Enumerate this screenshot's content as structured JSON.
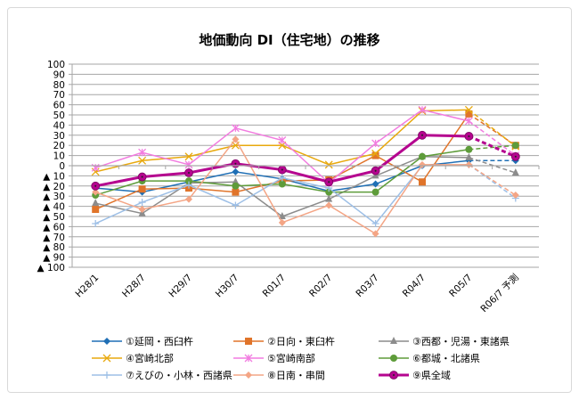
{
  "chart_data": {
    "type": "line",
    "title": "地価動向 DI（住宅地）の推移",
    "categories": [
      "H28/1",
      "H28/7",
      "H29/7",
      "H30/7",
      "R01/7",
      "R02/7",
      "R03/7",
      "R04/7",
      "R05/7",
      "R06/7 予測"
    ],
    "ylim": [
      -100,
      100
    ],
    "ytick_step": 10,
    "ytick_negative_prefix": "▲ ",
    "grid": true,
    "legend_placement": "bottom",
    "forecast_dashed_last_segment": true,
    "series": [
      {
        "name": "①延岡・西臼杵",
        "color": "#1f6fb5",
        "marker": "diamond",
        "width": 1.5,
        "values": [
          -22,
          -26,
          -16,
          -6,
          -13,
          -25,
          -18,
          0,
          5,
          5
        ]
      },
      {
        "name": "②日向・東臼杵",
        "color": "#e0742a",
        "marker": "square",
        "width": 1.5,
        "values": [
          -43,
          -23,
          -22,
          -26,
          -15,
          -14,
          10,
          -16,
          51,
          20
        ]
      },
      {
        "name": "③西都・児湯・東諸県",
        "color": "#8c8c8c",
        "marker": "triangle",
        "width": 1.5,
        "values": [
          -37,
          -47,
          -17,
          -16,
          -50,
          -33,
          -10,
          9,
          8,
          -7
        ]
      },
      {
        "name": "④宮崎北部",
        "color": "#e8a90e",
        "marker": "x",
        "width": 1.5,
        "values": [
          -6,
          5,
          9,
          20,
          20,
          1,
          12,
          54,
          55,
          19
        ]
      },
      {
        "name": "⑤宮崎南部",
        "color": "#f27ce0",
        "marker": "star",
        "width": 1.5,
        "values": [
          -2,
          13,
          1,
          37,
          25,
          -17,
          22,
          55,
          44,
          10
        ]
      },
      {
        "name": "⑥都城・北諸県",
        "color": "#5e9c3a",
        "marker": "circle",
        "width": 1.5,
        "values": [
          -29,
          -15,
          -15,
          -20,
          -18,
          -26,
          -26,
          9,
          16,
          20
        ]
      },
      {
        "name": "⑦えびの・小林・西諸県",
        "color": "#9dbfe6",
        "marker": "plus",
        "width": 1.5,
        "values": [
          -57,
          -36,
          -19,
          -39,
          -12,
          -22,
          -57,
          0,
          1,
          -32
        ]
      },
      {
        "name": "⑧日南・串間",
        "color": "#f4a585",
        "marker": "diamond",
        "width": 1.5,
        "values": [
          -26,
          -43,
          -33,
          26,
          -56,
          -39,
          -67,
          1,
          1,
          -29
        ]
      },
      {
        "name": "⑨県全域",
        "color": "#b5058f",
        "marker": "circle-dot",
        "width": 3,
        "values": [
          -20,
          -11,
          -7,
          2,
          -4,
          -16,
          -5,
          30,
          29,
          9
        ]
      }
    ]
  }
}
